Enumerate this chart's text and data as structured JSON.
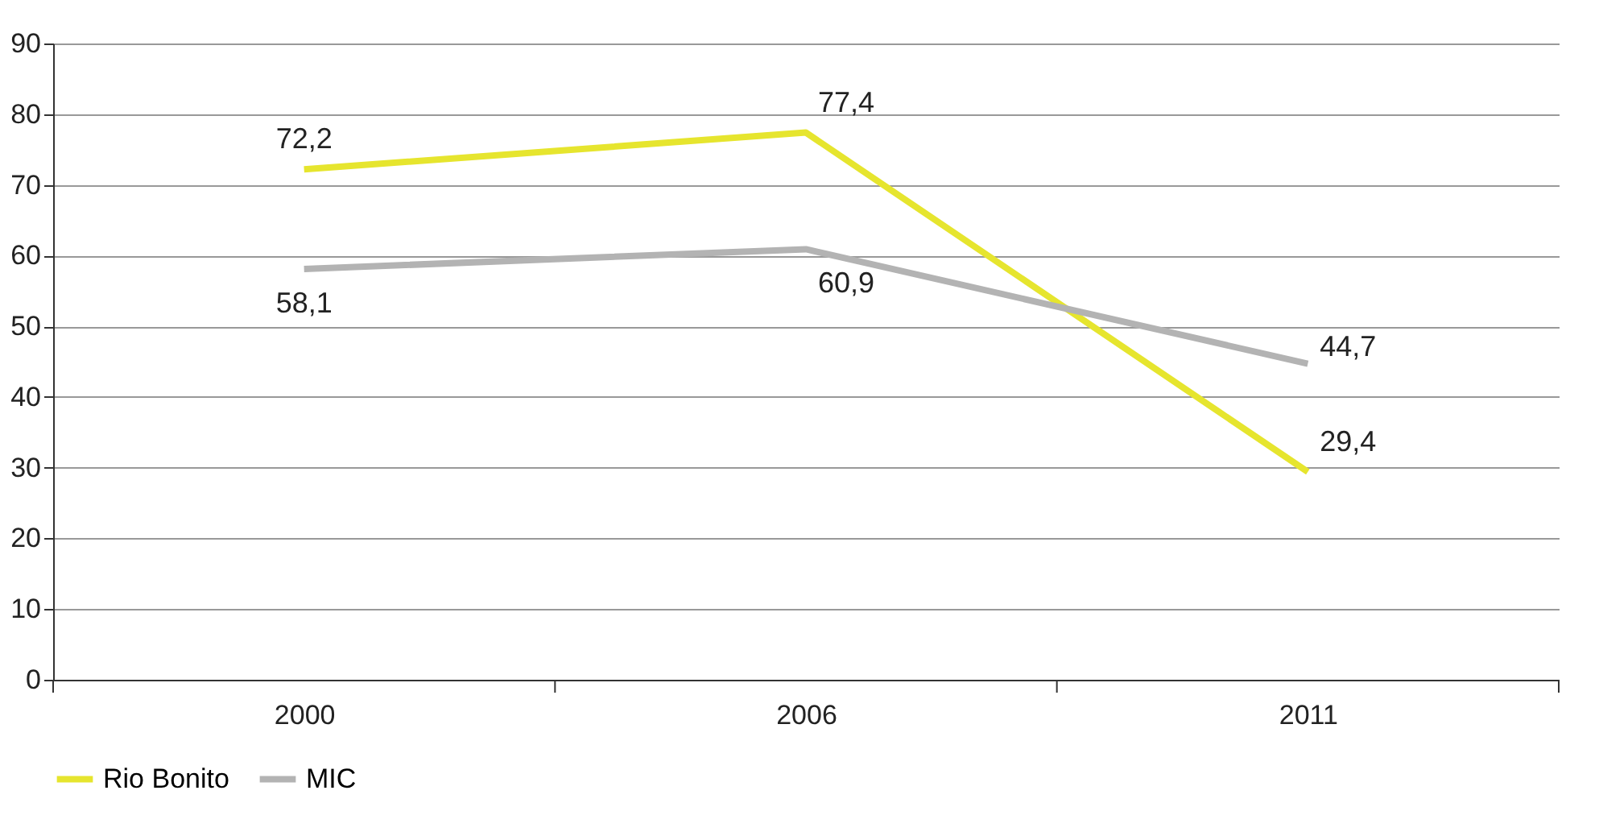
{
  "chart_data": {
    "type": "line",
    "categories": [
      "2000",
      "2006",
      "2011"
    ],
    "series": [
      {
        "name": "Rio Bonito",
        "color": "#e6e52e",
        "values": [
          72.2,
          77.4,
          29.4
        ],
        "value_labels": [
          "72,2",
          "77,4",
          "29,4"
        ]
      },
      {
        "name": "MIC",
        "color": "#b3b3b3",
        "values": [
          58.1,
          60.9,
          44.7
        ],
        "value_labels": [
          "58,1",
          "60,9",
          "44,7"
        ]
      }
    ],
    "ylim": [
      0,
      90
    ],
    "yticks": [
      0,
      10,
      20,
      30,
      40,
      50,
      60,
      70,
      80,
      90
    ],
    "grid": "y",
    "legend": "bottom",
    "marker": "none",
    "line_style": "solid"
  }
}
